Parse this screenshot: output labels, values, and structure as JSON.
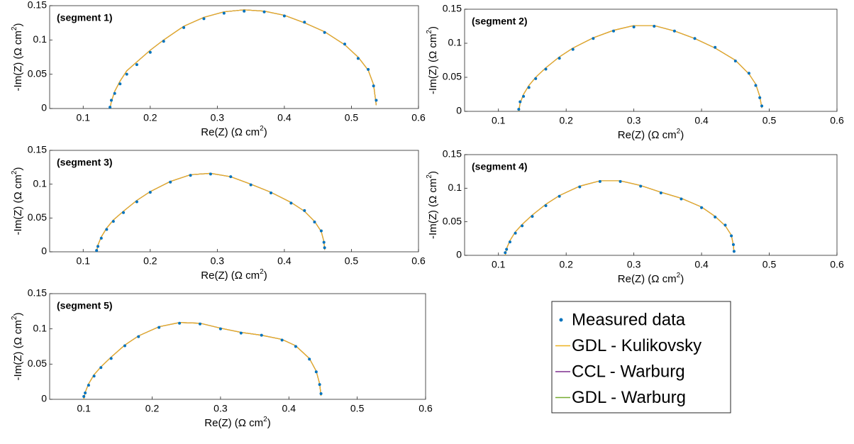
{
  "chart_data": [
    {
      "type": "line",
      "annotation": "(segment 1)",
      "xlabel": {
        "text": "Re(Z) (Ω cm",
        "sup": "2",
        "end": ")"
      },
      "ylabel": {
        "text": "-Im(Z) (Ω cm",
        "sup": "2",
        "end": ")"
      },
      "xlim": [
        0.05,
        0.6
      ],
      "ylim": [
        0,
        0.15
      ],
      "xticks": [
        0.1,
        0.2,
        0.3,
        0.4,
        0.5,
        0.6
      ],
      "yticks": [
        0,
        0.05,
        0.1,
        0.15
      ],
      "x": [
        0.14,
        0.142,
        0.147,
        0.155,
        0.165,
        0.18,
        0.2,
        0.22,
        0.25,
        0.28,
        0.31,
        0.34,
        0.37,
        0.4,
        0.43,
        0.46,
        0.49,
        0.51,
        0.525,
        0.533,
        0.537
      ],
      "series": [
        {
          "values": [
            0.002,
            0.012,
            0.022,
            0.036,
            0.05,
            0.064,
            0.082,
            0.098,
            0.118,
            0.131,
            0.139,
            0.142,
            0.141,
            0.135,
            0.126,
            0.111,
            0.094,
            0.073,
            0.057,
            0.033,
            0.012
          ]
        },
        {
          "values": [
            0,
            0.01,
            0.025,
            0.04,
            0.055,
            0.068,
            0.085,
            0.1,
            0.12,
            0.133,
            0.141,
            0.144,
            0.142,
            0.136,
            0.125,
            0.112,
            0.093,
            0.075,
            0.056,
            0.035,
            0.005
          ]
        },
        {
          "values": [
            0,
            0.01,
            0.025,
            0.04,
            0.055,
            0.068,
            0.085,
            0.1,
            0.12,
            0.133,
            0.141,
            0.144,
            0.142,
            0.136,
            0.125,
            0.112,
            0.093,
            0.075,
            0.056,
            0.035,
            0.005
          ]
        },
        {
          "values": [
            0,
            0.01,
            0.025,
            0.04,
            0.055,
            0.068,
            0.085,
            0.1,
            0.12,
            0.133,
            0.141,
            0.144,
            0.142,
            0.136,
            0.125,
            0.112,
            0.093,
            0.075,
            0.056,
            0.035,
            0.005
          ]
        }
      ]
    },
    {
      "type": "line",
      "annotation": "(segment 2)",
      "xlabel": {
        "text": "Re(Z) (Ω cm",
        "sup": "2",
        "end": ")"
      },
      "ylabel": {
        "text": "-Im(Z) (Ω cm",
        "sup": "2",
        "end": ")"
      },
      "xlim": [
        0.05,
        0.6
      ],
      "ylim": [
        0,
        0.15
      ],
      "xticks": [
        0.1,
        0.2,
        0.3,
        0.4,
        0.5,
        0.6
      ],
      "yticks": [
        0,
        0.05,
        0.1,
        0.15
      ],
      "x": [
        0.13,
        0.132,
        0.137,
        0.145,
        0.155,
        0.17,
        0.19,
        0.21,
        0.24,
        0.27,
        0.3,
        0.33,
        0.36,
        0.39,
        0.42,
        0.45,
        0.47,
        0.48,
        0.486,
        0.489
      ],
      "series": [
        {
          "values": [
            0.003,
            0.014,
            0.022,
            0.035,
            0.048,
            0.062,
            0.078,
            0.091,
            0.107,
            0.118,
            0.124,
            0.125,
            0.118,
            0.107,
            0.094,
            0.074,
            0.056,
            0.038,
            0.02,
            0.008
          ]
        },
        {
          "values": [
            0,
            0.012,
            0.025,
            0.038,
            0.05,
            0.064,
            0.08,
            0.093,
            0.108,
            0.119,
            0.126,
            0.126,
            0.118,
            0.107,
            0.093,
            0.075,
            0.055,
            0.04,
            0.022,
            0.005
          ]
        },
        {
          "values": [
            0,
            0.012,
            0.025,
            0.038,
            0.05,
            0.064,
            0.08,
            0.093,
            0.108,
            0.119,
            0.126,
            0.126,
            0.118,
            0.107,
            0.093,
            0.075,
            0.055,
            0.04,
            0.022,
            0.005
          ]
        },
        {
          "values": [
            0,
            0.012,
            0.025,
            0.038,
            0.05,
            0.064,
            0.08,
            0.093,
            0.108,
            0.119,
            0.126,
            0.126,
            0.118,
            0.107,
            0.093,
            0.075,
            0.055,
            0.04,
            0.022,
            0.005
          ]
        }
      ]
    },
    {
      "type": "line",
      "annotation": "(segment 3)",
      "xlabel": {
        "text": "Re(Z) (Ω cm",
        "sup": "2",
        "end": ")"
      },
      "ylabel": {
        "text": "-Im(Z) (Ω cm",
        "sup": "2",
        "end": ")"
      },
      "xlim": [
        0.05,
        0.6
      ],
      "ylim": [
        0,
        0.15
      ],
      "xticks": [
        0.1,
        0.2,
        0.3,
        0.4,
        0.5,
        0.6
      ],
      "yticks": [
        0,
        0.05,
        0.1,
        0.15
      ],
      "x": [
        0.12,
        0.122,
        0.127,
        0.135,
        0.145,
        0.16,
        0.18,
        0.2,
        0.23,
        0.26,
        0.29,
        0.32,
        0.35,
        0.38,
        0.41,
        0.43,
        0.445,
        0.455,
        0.459,
        0.46
      ],
      "series": [
        {
          "values": [
            0.002,
            0.008,
            0.02,
            0.033,
            0.045,
            0.058,
            0.074,
            0.088,
            0.103,
            0.113,
            0.115,
            0.111,
            0.099,
            0.087,
            0.072,
            0.061,
            0.044,
            0.031,
            0.014,
            0.006
          ]
        },
        {
          "values": [
            0,
            0.01,
            0.022,
            0.035,
            0.047,
            0.06,
            0.076,
            0.089,
            0.104,
            0.114,
            0.116,
            0.111,
            0.1,
            0.088,
            0.073,
            0.06,
            0.045,
            0.03,
            0.015,
            0.003
          ]
        },
        {
          "values": [
            0,
            0.01,
            0.022,
            0.035,
            0.047,
            0.06,
            0.076,
            0.089,
            0.104,
            0.114,
            0.116,
            0.111,
            0.1,
            0.088,
            0.073,
            0.06,
            0.045,
            0.03,
            0.015,
            0.003
          ]
        },
        {
          "values": [
            0,
            0.01,
            0.022,
            0.035,
            0.047,
            0.06,
            0.076,
            0.089,
            0.104,
            0.114,
            0.116,
            0.111,
            0.1,
            0.088,
            0.073,
            0.06,
            0.045,
            0.03,
            0.015,
            0.003
          ]
        }
      ]
    },
    {
      "type": "line",
      "annotation": "(segment 4)",
      "xlabel": {
        "text": "Re(Z) (Ω cm",
        "sup": "2",
        "end": ")"
      },
      "ylabel": {
        "text": "-Im(Z) (Ω cm",
        "sup": "2",
        "end": ")"
      },
      "xlim": [
        0.05,
        0.6
      ],
      "ylim": [
        0,
        0.15
      ],
      "xticks": [
        0.1,
        0.2,
        0.3,
        0.4,
        0.5,
        0.6
      ],
      "yticks": [
        0,
        0.05,
        0.1,
        0.15
      ],
      "x": [
        0.11,
        0.112,
        0.117,
        0.125,
        0.135,
        0.15,
        0.17,
        0.19,
        0.22,
        0.25,
        0.28,
        0.31,
        0.34,
        0.37,
        0.4,
        0.42,
        0.435,
        0.444,
        0.447,
        0.448
      ],
      "series": [
        {
          "values": [
            0.004,
            0.009,
            0.02,
            0.033,
            0.044,
            0.058,
            0.074,
            0.088,
            0.102,
            0.11,
            0.11,
            0.103,
            0.093,
            0.084,
            0.071,
            0.057,
            0.045,
            0.029,
            0.016,
            0.006
          ]
        },
        {
          "values": [
            0,
            0.01,
            0.022,
            0.035,
            0.046,
            0.06,
            0.076,
            0.089,
            0.103,
            0.111,
            0.111,
            0.104,
            0.094,
            0.085,
            0.072,
            0.058,
            0.044,
            0.03,
            0.015,
            0.004
          ]
        },
        {
          "values": [
            0,
            0.01,
            0.022,
            0.035,
            0.046,
            0.06,
            0.076,
            0.089,
            0.103,
            0.111,
            0.111,
            0.104,
            0.094,
            0.085,
            0.072,
            0.058,
            0.044,
            0.03,
            0.015,
            0.004
          ]
        },
        {
          "values": [
            0,
            0.01,
            0.022,
            0.035,
            0.046,
            0.06,
            0.076,
            0.089,
            0.103,
            0.111,
            0.111,
            0.104,
            0.094,
            0.085,
            0.072,
            0.058,
            0.044,
            0.03,
            0.015,
            0.004
          ]
        }
      ]
    },
    {
      "type": "line",
      "annotation": "(segment 5)",
      "xlabel": {
        "text": "Re(Z) (Ω cm",
        "sup": "2",
        "end": ")"
      },
      "ylabel": {
        "text": "-Im(Z) (Ω cm",
        "sup": "2",
        "end": ")"
      },
      "xlim": [
        0.05,
        0.6
      ],
      "ylim": [
        0,
        0.15
      ],
      "xticks": [
        0.1,
        0.2,
        0.3,
        0.4,
        0.5,
        0.6
      ],
      "yticks": [
        0,
        0.05,
        0.1,
        0.15
      ],
      "x": [
        0.1,
        0.102,
        0.107,
        0.115,
        0.125,
        0.14,
        0.16,
        0.18,
        0.21,
        0.24,
        0.27,
        0.3,
        0.33,
        0.36,
        0.39,
        0.41,
        0.43,
        0.44,
        0.445,
        0.447
      ],
      "series": [
        {
          "values": [
            0.004,
            0.009,
            0.02,
            0.033,
            0.045,
            0.058,
            0.076,
            0.089,
            0.102,
            0.108,
            0.107,
            0.1,
            0.094,
            0.091,
            0.084,
            0.075,
            0.057,
            0.039,
            0.021,
            0.008
          ]
        },
        {
          "values": [
            0,
            0.01,
            0.022,
            0.035,
            0.046,
            0.06,
            0.077,
            0.09,
            0.103,
            0.109,
            0.108,
            0.101,
            0.095,
            0.091,
            0.085,
            0.076,
            0.058,
            0.04,
            0.022,
            0.005
          ]
        },
        {
          "values": [
            0,
            0.01,
            0.022,
            0.035,
            0.046,
            0.06,
            0.077,
            0.09,
            0.103,
            0.109,
            0.108,
            0.101,
            0.095,
            0.091,
            0.085,
            0.076,
            0.058,
            0.04,
            0.022,
            0.005
          ]
        },
        {
          "values": [
            0,
            0.01,
            0.022,
            0.035,
            0.046,
            0.06,
            0.077,
            0.09,
            0.103,
            0.109,
            0.108,
            0.101,
            0.095,
            0.091,
            0.085,
            0.076,
            0.058,
            0.04,
            0.022,
            0.005
          ]
        }
      ]
    }
  ],
  "legend": {
    "entries": [
      {
        "name": "Measured data",
        "color": "#0072bd",
        "style": "dot"
      },
      {
        "name": "GDL - Kulikovsky",
        "color": "#edb120",
        "style": "line"
      },
      {
        "name": "CCL - Warburg",
        "color": "#7e2f8e",
        "style": "line"
      },
      {
        "name": "GDL - Warburg",
        "color": "#77ac30",
        "style": "line"
      }
    ]
  }
}
